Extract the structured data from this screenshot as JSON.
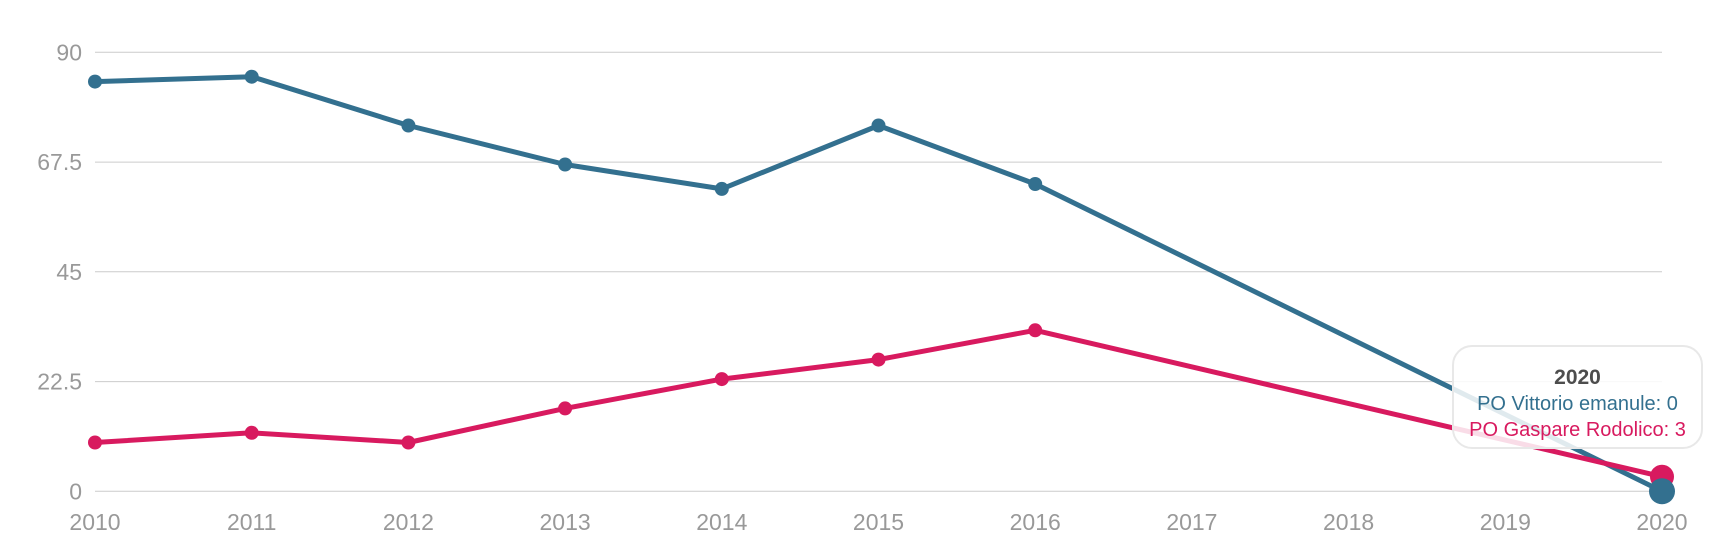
{
  "chart": {
    "tooltip": {
      "title": "2020",
      "lines": [
        {
          "label": "PO Vittorio emanule",
          "value": 0,
          "text": "PO Vittorio emanule: 0"
        },
        {
          "label": "PO Gaspare Rodolico",
          "value": 3,
          "text": "PO Gaspare Rodolico: 3"
        }
      ]
    }
  },
  "chart_data": {
    "type": "line",
    "x": [
      "2010",
      "2011",
      "2012",
      "2013",
      "2014",
      "2015",
      "2016",
      "2017",
      "2018",
      "2019",
      "2020"
    ],
    "series": [
      {
        "name": "PO Vittorio emanule",
        "color": "#33708f",
        "values": [
          84,
          85,
          75,
          67,
          62,
          75,
          63,
          null,
          null,
          null,
          0
        ]
      },
      {
        "name": "PO Gaspare Rodolico",
        "color": "#d81a5f",
        "values": [
          10,
          12,
          10,
          17,
          23,
          27,
          33,
          null,
          null,
          null,
          3
        ]
      }
    ],
    "title": "",
    "xlabel": "",
    "ylabel": "",
    "ylim": [
      0,
      90
    ],
    "yticks": [
      0,
      22.5,
      45,
      67.5,
      90
    ],
    "ytick_labels": [
      "0",
      "22.5",
      "45",
      "67.5",
      "90"
    ],
    "grid": true,
    "legend_position": "none",
    "hover_x": "2020",
    "axis_label_color": "#999999",
    "gridline_color": "#cccccc"
  }
}
